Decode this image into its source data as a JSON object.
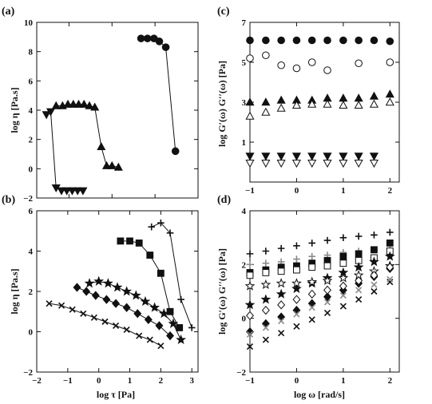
{
  "chart_data": [
    {
      "id": "a",
      "panel_label": "(a)",
      "type": "scatter",
      "ylabel": "log η [Pa.s]",
      "xlim": [
        -2.5,
        5
      ],
      "ylim": [
        -2,
        10
      ],
      "xticks": [
        -1,
        1,
        3,
        5
      ],
      "yticks": [
        -2,
        0,
        2,
        4,
        6,
        8,
        10
      ],
      "xtick_labels": false,
      "series": [
        {
          "marker": "circle",
          "line": true,
          "x": [
            2.35,
            2.65,
            2.95,
            3.2,
            3.5,
            3.95
          ],
          "y": [
            8.9,
            8.9,
            8.9,
            8.7,
            8.3,
            1.2
          ]
        },
        {
          "marker": "tri-up",
          "line": true,
          "x": [
            -1.6,
            -1.3,
            -1.05,
            -0.8,
            -0.55,
            -0.3,
            -0.05,
            0.2,
            0.5,
            0.75,
            1.0,
            1.3
          ],
          "y": [
            4.3,
            4.3,
            4.4,
            4.4,
            4.4,
            4.4,
            4.3,
            4.2,
            1.5,
            0.2,
            0.2,
            0.1
          ]
        },
        {
          "marker": "tri-down",
          "line": true,
          "x": [
            -2.05,
            -1.85,
            -1.6,
            -1.35,
            -1.1,
            -0.85,
            -0.6,
            -0.35
          ],
          "y": [
            3.7,
            3.9,
            -1.3,
            -1.5,
            -1.5,
            -1.5,
            -1.5,
            -1.5
          ]
        }
      ]
    },
    {
      "id": "b",
      "panel_label": "(b)",
      "type": "scatter",
      "ylabel": "log η [Pa.s]",
      "xlabel": "log τ [Pa]",
      "xlim": [
        -2,
        3.2
      ],
      "ylim": [
        -2,
        6
      ],
      "xticks": [
        -2,
        -1,
        0,
        1,
        2,
        3
      ],
      "yticks": [
        -2,
        0,
        2,
        4,
        6
      ],
      "xtick_labels": true,
      "series": [
        {
          "marker": "plus",
          "line": true,
          "x": [
            1.7,
            2.0,
            2.3,
            2.65,
            3.0
          ],
          "y": [
            5.2,
            5.4,
            4.9,
            1.6,
            0.2
          ]
        },
        {
          "marker": "square",
          "line": true,
          "x": [
            0.7,
            1.0,
            1.3,
            1.65,
            2.0,
            2.3,
            2.6
          ],
          "y": [
            4.5,
            4.5,
            4.4,
            3.8,
            2.9,
            1.0,
            0.2
          ]
        },
        {
          "marker": "star",
          "line": true,
          "x": [
            -0.3,
            0.0,
            0.3,
            0.6,
            0.9,
            1.2,
            1.5,
            1.8,
            2.1,
            2.4,
            2.65
          ],
          "y": [
            2.4,
            2.5,
            2.4,
            2.2,
            2.0,
            1.8,
            1.5,
            1.2,
            0.9,
            0.4,
            -0.4
          ]
        },
        {
          "marker": "diamond",
          "line": true,
          "x": [
            -0.7,
            -0.4,
            -0.1,
            0.25,
            0.55,
            0.9,
            1.25,
            1.6,
            1.95,
            2.3
          ],
          "y": [
            2.2,
            2.0,
            1.8,
            1.6,
            1.4,
            1.2,
            0.9,
            0.6,
            0.3,
            -0.2
          ]
        },
        {
          "marker": "cross",
          "line": true,
          "x": [
            -1.6,
            -1.2,
            -0.85,
            -0.5,
            -0.15,
            0.2,
            0.55,
            0.9,
            1.3,
            1.65,
            2.0
          ],
          "y": [
            1.4,
            1.3,
            1.1,
            0.9,
            0.7,
            0.5,
            0.3,
            0.1,
            -0.2,
            -0.4,
            -0.7
          ]
        }
      ]
    },
    {
      "id": "c",
      "panel_label": "(c)",
      "type": "scatter",
      "ylabel": "log G′(ω) G′′(ω) [Pa]",
      "xlim": [
        -1,
        2.2
      ],
      "ylim": [
        -1,
        7
      ],
      "xticks": [
        -1,
        0,
        1,
        2
      ],
      "yticks": [
        -1,
        1,
        3,
        5,
        7
      ],
      "ytick_labels": [
        1,
        3,
        5,
        7
      ],
      "xtick_labels": true,
      "series": [
        {
          "marker": "circle",
          "x": [
            -1,
            -0.66,
            -0.33,
            0,
            0.33,
            0.66,
            1,
            1.33,
            1.66,
            2
          ],
          "y": [
            6.1,
            6.1,
            6.1,
            6.1,
            6.1,
            6.1,
            6.1,
            6.1,
            6.1,
            6.05
          ]
        },
        {
          "marker": "circle-open",
          "x": [
            -1,
            -0.66,
            -0.33,
            0,
            0.33,
            0.66,
            1.33,
            2
          ],
          "y": [
            5.2,
            5.35,
            4.85,
            4.7,
            5.0,
            4.6,
            4.95,
            5.0
          ]
        },
        {
          "marker": "tri-up",
          "x": [
            -1,
            -0.66,
            -0.33,
            0,
            0.33,
            0.66,
            1,
            1.33,
            1.66,
            2
          ],
          "y": [
            3.0,
            3.0,
            3.1,
            3.1,
            3.1,
            3.2,
            3.2,
            3.2,
            3.3,
            3.4
          ]
        },
        {
          "marker": "tri-up-open",
          "x": [
            -1,
            -0.66,
            -0.33,
            0,
            0.33,
            0.66,
            1,
            1.33,
            1.66,
            2
          ],
          "y": [
            2.3,
            2.5,
            2.7,
            2.85,
            2.9,
            2.9,
            2.85,
            2.85,
            2.9,
            3.0
          ]
        },
        {
          "marker": "tri-down",
          "x": [
            -1,
            -0.66,
            -0.33,
            0,
            0.33,
            0.66,
            1,
            1.33,
            1.66
          ],
          "y": [
            0.3,
            0.3,
            0.3,
            0.3,
            0.3,
            0.3,
            0.3,
            0.3,
            0.3
          ]
        },
        {
          "marker": "tri-down-open",
          "x": [
            -1,
            -0.66,
            -0.33,
            0,
            0.33,
            0.66,
            1,
            1.33,
            1.66
          ],
          "y": [
            -0.05,
            -0.05,
            -0.05,
            -0.05,
            -0.05,
            -0.05,
            -0.05,
            -0.05,
            -0.05
          ]
        }
      ]
    },
    {
      "id": "d",
      "panel_label": "(d)",
      "type": "scatter",
      "ylabel": "log G′(ω) G′′(ω) [Pa]",
      "xlabel": "log ω [rad/s]",
      "xlim": [
        -1,
        2.2
      ],
      "ylim": [
        -2,
        4
      ],
      "xticks": [
        -1,
        0,
        1,
        2
      ],
      "yticks": [
        -2,
        0,
        2,
        4
      ],
      "xtick_labels": true,
      "series": [
        {
          "marker": "plus",
          "x": [
            -1,
            -0.66,
            -0.33,
            0,
            0.33,
            0.66,
            1,
            1.33,
            1.66,
            2
          ],
          "y": [
            2.4,
            2.5,
            2.6,
            2.7,
            2.8,
            2.9,
            3.0,
            3.05,
            3.1,
            3.2
          ]
        },
        {
          "marker": "plus-gray",
          "x": [
            -1,
            -0.66,
            -0.33,
            0,
            0.33,
            0.66,
            1,
            1.33,
            1.66,
            2
          ],
          "y": [
            2.0,
            2.05,
            2.1,
            2.2,
            2.3,
            2.35,
            2.45,
            2.5,
            2.55,
            2.6
          ]
        },
        {
          "marker": "square",
          "x": [
            -1,
            -0.66,
            -0.33,
            0,
            0.33,
            0.66,
            1,
            1.33,
            1.66,
            2
          ],
          "y": [
            1.7,
            1.8,
            1.9,
            1.95,
            2.05,
            2.15,
            2.3,
            2.4,
            2.55,
            2.8
          ]
        },
        {
          "marker": "square-open",
          "x": [
            -1,
            -0.66,
            -0.33,
            0,
            0.33,
            0.66,
            1,
            1.33,
            1.66,
            2
          ],
          "y": [
            1.6,
            1.7,
            1.75,
            1.8,
            1.9,
            1.95,
            2.05,
            2.15,
            2.25,
            2.5
          ]
        },
        {
          "marker": "star",
          "x": [
            -1,
            -0.66,
            -0.33,
            0,
            0.33,
            0.66,
            1,
            1.33,
            1.66,
            2
          ],
          "y": [
            0.5,
            0.7,
            0.9,
            1.1,
            1.3,
            1.5,
            1.7,
            1.9,
            2.1,
            2.3
          ]
        },
        {
          "marker": "star-open",
          "x": [
            -1,
            -0.66,
            -0.33,
            0,
            0.33,
            0.66,
            1,
            1.33,
            1.66,
            2
          ],
          "y": [
            1.2,
            1.25,
            1.3,
            1.3,
            1.35,
            1.4,
            1.5,
            1.6,
            1.75,
            1.95
          ]
        },
        {
          "marker": "diamond",
          "x": [
            -1,
            -0.66,
            -0.33,
            0,
            0.33,
            0.66,
            1,
            1.33,
            1.66,
            2
          ],
          "y": [
            -0.5,
            -0.2,
            0.05,
            0.3,
            0.55,
            0.8,
            1.05,
            1.3,
            1.55,
            1.85
          ]
        },
        {
          "marker": "diamond-open",
          "x": [
            -1,
            -0.66,
            -0.33,
            0,
            0.33,
            0.66,
            1,
            1.33,
            1.66,
            2
          ],
          "y": [
            0.1,
            0.3,
            0.5,
            0.7,
            0.9,
            1.05,
            1.2,
            1.4,
            1.6,
            1.9
          ]
        },
        {
          "marker": "cross",
          "x": [
            -1,
            -0.66,
            -0.33,
            0,
            0.33,
            0.66,
            1,
            1.33,
            1.66,
            2
          ],
          "y": [
            -1.05,
            -0.8,
            -0.55,
            -0.3,
            -0.05,
            0.2,
            0.45,
            0.7,
            1.0,
            1.35
          ]
        },
        {
          "marker": "cross-gray",
          "x": [
            -1,
            -0.66,
            -0.33,
            0,
            0.33,
            0.66,
            1,
            1.33,
            1.66,
            2
          ],
          "y": [
            -0.6,
            -0.35,
            -0.1,
            0.15,
            0.4,
            0.6,
            0.85,
            1.05,
            1.25,
            1.45
          ]
        }
      ]
    }
  ]
}
